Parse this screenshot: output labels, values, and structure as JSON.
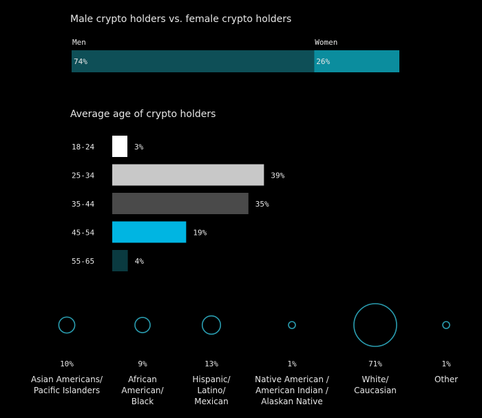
{
  "chart_data": [
    {
      "type": "bar",
      "orientation": "horizontal-stacked",
      "title": "Male crypto holders vs. female crypto holders",
      "categories": [
        "Men",
        "Women"
      ],
      "values": [
        74,
        26
      ],
      "value_labels": [
        "74%",
        "26%"
      ],
      "colors": [
        "#0e4f57",
        "#0b8d9e"
      ],
      "xlim": [
        0,
        100
      ]
    },
    {
      "type": "bar",
      "orientation": "horizontal",
      "title": "Average age of crypto holders",
      "categories": [
        "18-24",
        "25-34",
        "35-44",
        "45-54",
        "55-65"
      ],
      "values": [
        3,
        39,
        35,
        19,
        4
      ],
      "value_labels": [
        "3%",
        "39%",
        "35%",
        "19%",
        "4%"
      ],
      "colors": [
        "#ffffff",
        "#c8c8c8",
        "#4a4a4a",
        "#00b5e2",
        "#0a3a40"
      ],
      "xlim": [
        0,
        40
      ]
    },
    {
      "type": "bubble",
      "categories": [
        [
          "Asian Americans/",
          "Pacific Islanders"
        ],
        [
          "African",
          "American/",
          "Black"
        ],
        [
          "Hispanic/",
          "Latino/",
          "Mexican"
        ],
        [
          "Native American /",
          "American Indian /",
          "Alaskan Native"
        ],
        [
          "White/",
          "Caucasian"
        ],
        [
          "Other"
        ]
      ],
      "values": [
        10,
        9,
        13,
        1,
        71,
        1
      ],
      "value_labels": [
        "10%",
        "9%",
        "13%",
        "1%",
        "71%",
        "1%"
      ],
      "colors": [
        "#2a9db0"
      ]
    }
  ]
}
